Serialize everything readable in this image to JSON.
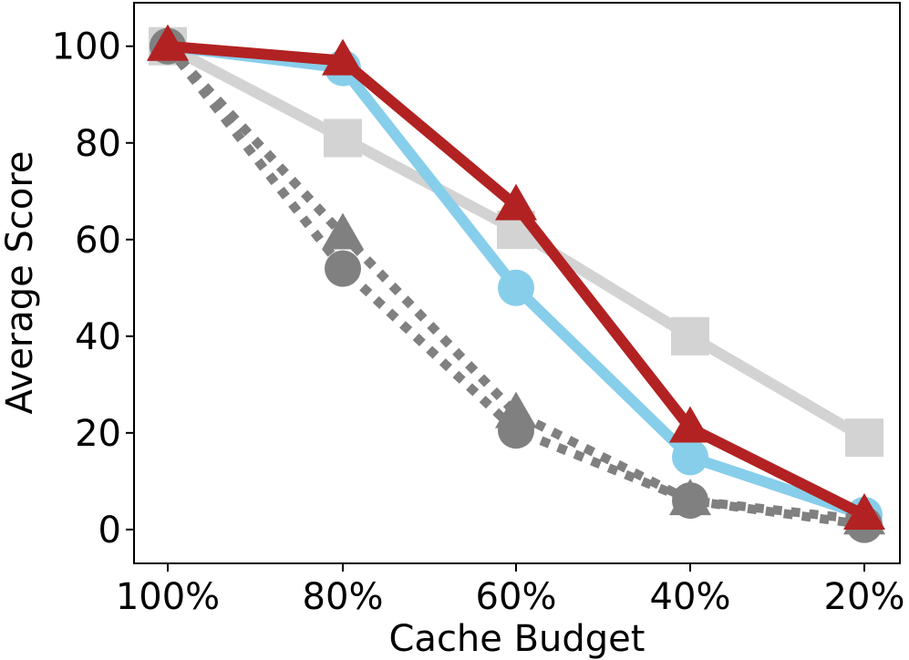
{
  "chart_data": {
    "type": "line",
    "xlabel": "Cache Budget",
    "ylabel": "Average Score",
    "categories": [
      "100%",
      "80%",
      "60%",
      "40%",
      "20%"
    ],
    "yticks": [
      0,
      20,
      40,
      60,
      80,
      100
    ],
    "ylim": [
      -7,
      109
    ],
    "grid": false,
    "legend": "none",
    "series": [
      {
        "values": [
          100,
          81,
          62,
          40,
          19
        ],
        "color": "#d3d3d3",
        "line": "solid",
        "marker": "square"
      },
      {
        "values": [
          100,
          95.5,
          50,
          15,
          3
        ],
        "color": "#87ceeb",
        "line": "solid",
        "marker": "circle"
      },
      {
        "values": [
          100,
          61,
          24,
          6,
          2
        ],
        "color": "#808080",
        "line": "dotted",
        "marker": "triangle"
      },
      {
        "values": [
          100,
          54,
          20.5,
          6,
          1
        ],
        "color": "#808080",
        "line": "dotted",
        "marker": "circle"
      },
      {
        "values": [
          100,
          97,
          67,
          21,
          3
        ],
        "color": "#b22222",
        "line": "solid",
        "marker": "triangle"
      }
    ]
  }
}
